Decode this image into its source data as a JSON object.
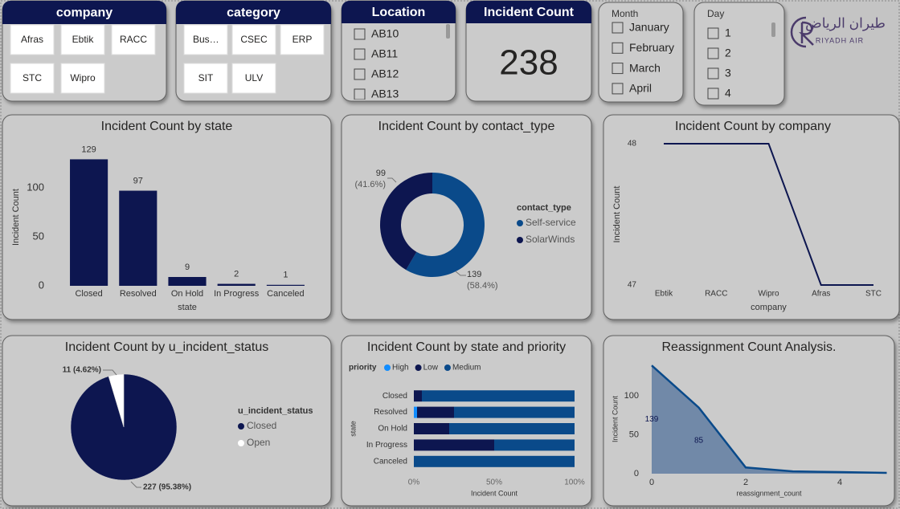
{
  "company_slicer": {
    "title": "company",
    "items": [
      "Afras",
      "Ebtik",
      "RACC",
      "STC",
      "Wipro"
    ]
  },
  "category_slicer": {
    "title": "category",
    "items": [
      "Bus…",
      "CSEC",
      "ERP",
      "SIT",
      "ULV"
    ]
  },
  "location_slicer": {
    "title": "Location",
    "items": [
      "AB10",
      "AB11",
      "AB12",
      "AB13"
    ]
  },
  "incident_card": {
    "title": "Incident Count",
    "value": 238
  },
  "month_slicer": {
    "title": "Month",
    "items": [
      "January",
      "February",
      "March",
      "April"
    ]
  },
  "day_slicer": {
    "title": "Day",
    "items": [
      1,
      2,
      3,
      4
    ]
  },
  "logo": {
    "arabic": "طيران الرياض",
    "english": "RIYADH AIR"
  },
  "chart_data": [
    {
      "type": "bar",
      "title": "Incident Count by state",
      "x_label": "state",
      "y_label": "Incident Count",
      "categories": [
        "Closed",
        "Resolved",
        "On Hold",
        "In Progress",
        "Canceled"
      ],
      "values": [
        129,
        97,
        9,
        2,
        1
      ],
      "color": "#0d1650",
      "ylim": [
        0,
        140
      ],
      "yticks": [
        0,
        50,
        100
      ],
      "data_labels": true
    },
    {
      "type": "pie",
      "donut": true,
      "title": "Incident Count by contact_type",
      "legend_title": "contact_type",
      "categories": [
        "Self-service",
        "SolarWinds"
      ],
      "values": [
        139,
        99
      ],
      "percent_labels": [
        "(58.4%)",
        "(41.6%)"
      ],
      "colors": [
        "#0a4a8a",
        "#0d1650"
      ]
    },
    {
      "type": "line",
      "title": "Incident Count by company",
      "x_label": "company",
      "y_label": "Incident Count",
      "categories": [
        "Ebtik",
        "RACC",
        "Wipro",
        "Afras",
        "STC"
      ],
      "values": [
        48,
        48,
        48,
        47,
        47
      ],
      "color": "#0d1650",
      "ylim": [
        47,
        48
      ],
      "yticks": [
        47,
        48
      ]
    },
    {
      "type": "pie",
      "donut": false,
      "title": "Incident Count by u_incident_status",
      "legend_title": "u_incident_status",
      "categories": [
        "Closed",
        "Open"
      ],
      "values": [
        227,
        11
      ],
      "value_labels": [
        "227 (95.38%)",
        "11 (4.62%)"
      ],
      "colors": [
        "#0d1650",
        "#ffffff"
      ]
    },
    {
      "type": "bar",
      "orientation": "horizontal",
      "stacked": true,
      "title": "Incident Count by state and priority",
      "legend_title": "priority",
      "x_label": "Incident Count",
      "y_label": "state",
      "categories": [
        "Closed",
        "Resolved",
        "On Hold",
        "In Progress",
        "Canceled"
      ],
      "series": [
        {
          "name": "High",
          "color": "#118dff",
          "values": [
            0,
            2,
            0,
            0,
            0
          ]
        },
        {
          "name": "Low",
          "color": "#0d1650",
          "values": [
            5,
            23,
            22,
            50,
            0
          ]
        },
        {
          "name": "Medium",
          "color": "#0a4a8a",
          "values": [
            95,
            75,
            78,
            50,
            100
          ]
        }
      ],
      "xlim": [
        0,
        100
      ],
      "xticks": [
        {
          "value": 0,
          "label": "0%"
        },
        {
          "value": 50,
          "label": "50%"
        },
        {
          "value": 100,
          "label": "100%"
        }
      ]
    },
    {
      "type": "area",
      "title": "Reassignment Count Analysis.",
      "x_label": "reassignment_count",
      "y_label": "Incident Count",
      "x": [
        0,
        1,
        2,
        3,
        4,
        5
      ],
      "values": [
        139,
        85,
        8,
        3,
        2,
        1
      ],
      "value_labels": [
        "139",
        "85",
        null,
        null,
        null,
        null
      ],
      "color": "#0a4a8a",
      "fill_color": "#7189a8",
      "xlim": [
        0,
        5
      ],
      "xticks": [
        0,
        2,
        4
      ],
      "ylim": [
        0,
        150
      ],
      "yticks": [
        0,
        50,
        100
      ]
    }
  ]
}
